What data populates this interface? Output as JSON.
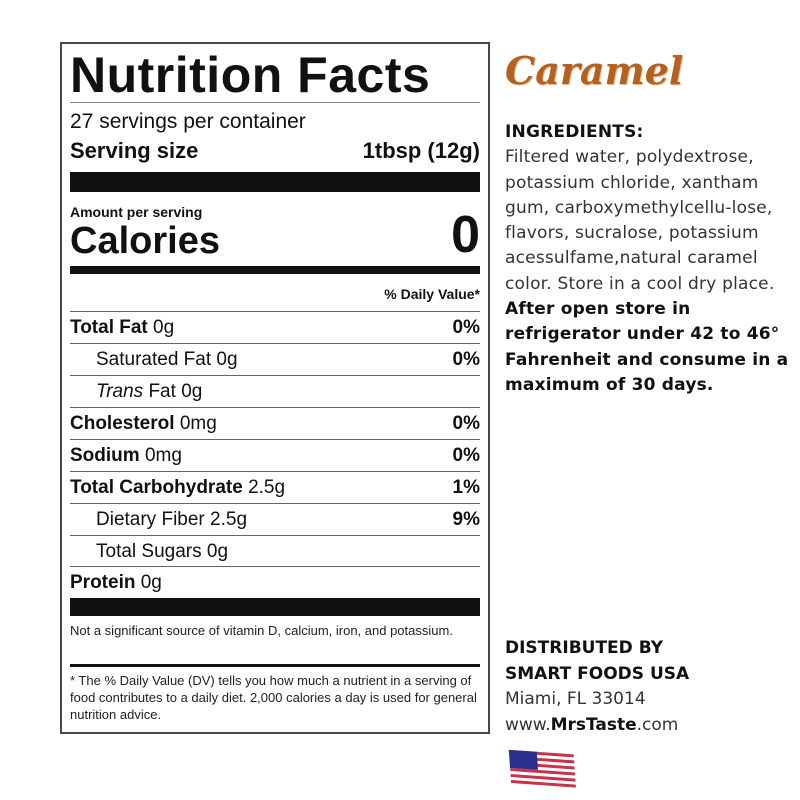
{
  "label": {
    "title": "Nutrition Facts",
    "servings": "27 servings per container",
    "serving_size_label": "Serving size",
    "serving_size_value": "1tbsp (12g)",
    "amount_per_serving": "Amount per serving",
    "calories_label": "Calories",
    "calories_value": "0",
    "daily_value_header": "% Daily Value*",
    "rows": [
      {
        "name": "Total Fat",
        "amount": "0g",
        "pct": "0%"
      },
      {
        "name": "Saturated Fat",
        "amount": "0g",
        "pct": "0%"
      },
      {
        "name": "Trans",
        "suffix": "Fat",
        "amount": "0g",
        "pct": ""
      },
      {
        "name": "Cholesterol",
        "amount": "0mg",
        "pct": "0%"
      },
      {
        "name": "Sodium",
        "amount": "0mg",
        "pct": "0%"
      },
      {
        "name": "Total Carbohydrate",
        "amount": "2.5g",
        "pct": "1%"
      },
      {
        "name": "Dietary Fiber",
        "amount": "2.5g",
        "pct": "9%"
      },
      {
        "name": "Total Sugars",
        "amount": "0g",
        "pct": ""
      },
      {
        "name": "Protein",
        "amount": "0g",
        "pct": ""
      }
    ],
    "note": "Not a significant source of vitamin D, calcium, iron, and potassium.",
    "footnote": "* The % Daily Value (DV) tells you how much a nutrient in a serving of food contributes to a daily diet. 2,000 calories a day is used for general nutrition advice."
  },
  "brand": "Caramel",
  "ingredients": {
    "heading": "INGREDIENTS:",
    "text": "Filtered water, polydextrose, potassium chloride, xantham gum, carboxymethylcellu-lose, flavors, sucralose, potassium acessulfame,natural caramel color. Store in a cool dry place.",
    "storage_bold": "After open store in refrigerator under 42 to 46° Fahrenheit and consume in a maximum of 30 days."
  },
  "distributor": {
    "line1": "DISTRIBUTED BY",
    "line2": "SMART FOODS USA",
    "address": "Miami, FL 33014",
    "web_prefix": "www.",
    "web_bold": "MrsTaste",
    "web_suffix": ".com"
  },
  "flag_icon": "us-flag-icon",
  "colors": {
    "brand": "#b5601f"
  }
}
